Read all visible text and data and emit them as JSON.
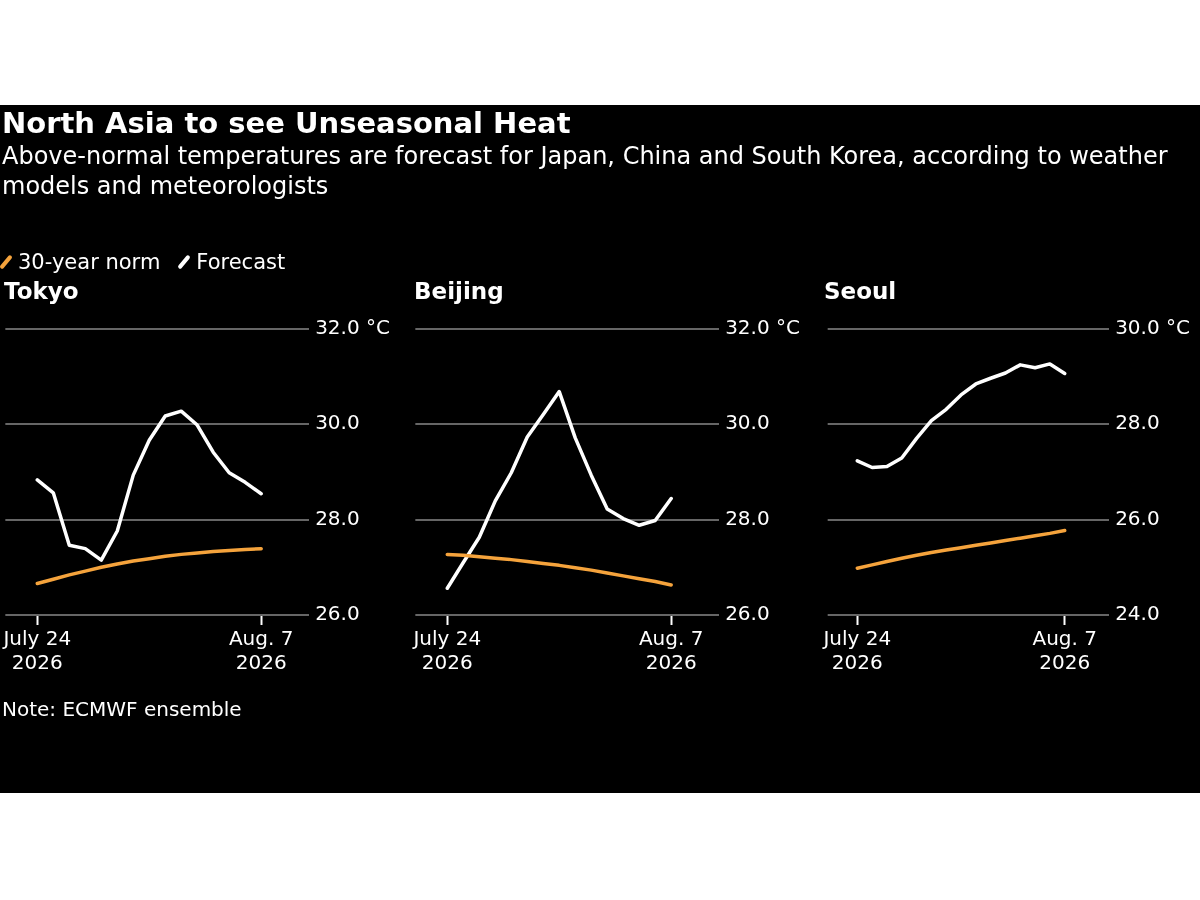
{
  "chart_data": [
    {
      "type": "other",
      "title": "North Asia to see Unseasonal Heat",
      "subtitle": "Above-normal temperatures are forecast for Japan, China and South Korea, according to weather models and meteorologists",
      "annotations": [
        "Note: ECMWF ensemble"
      ]
    },
    {
      "type": "line",
      "title": "Tokyo",
      "legend": "top left",
      "grid": "y",
      "x": [
        "2026-07-24",
        "2026-07-25",
        "2026-07-26",
        "2026-07-27",
        "2026-07-28",
        "2026-07-29",
        "2026-07-30",
        "2026-07-31",
        "2026-08-01",
        "2026-08-02",
        "2026-08-03",
        "2026-08-04",
        "2026-08-05",
        "2026-08-06",
        "2026-08-07"
      ],
      "xlim": [
        "2026-07-22",
        "2026-08-10"
      ],
      "xticks": [
        {
          "value": "2026-07-24",
          "label": "July 24\n2026"
        },
        {
          "value": "2026-08-07",
          "label": "Aug. 7\n2026"
        }
      ],
      "ylim": [
        26,
        32
      ],
      "yticks": [
        {
          "value": 26,
          "label": "26.0"
        },
        {
          "value": 28,
          "label": "28.0"
        },
        {
          "value": 30,
          "label": "30.0"
        },
        {
          "value": 32,
          "label": "32.0 °C"
        }
      ],
      "series": [
        {
          "name": "30-year norm",
          "color": "#f5a33c",
          "values": [
            26.66,
            26.75,
            26.84,
            26.92,
            27.0,
            27.07,
            27.13,
            27.18,
            27.23,
            27.27,
            27.3,
            27.33,
            27.35,
            27.37,
            27.39
          ]
        },
        {
          "name": "Forecast",
          "color": "#ffffff",
          "values": [
            28.83,
            28.56,
            27.46,
            27.39,
            27.15,
            27.76,
            28.93,
            29.66,
            30.17,
            30.27,
            29.98,
            29.41,
            28.98,
            28.78,
            28.54
          ]
        }
      ]
    },
    {
      "type": "line",
      "title": "Beijing",
      "grid": "y",
      "x": [
        "2026-07-24",
        "2026-07-25",
        "2026-07-26",
        "2026-07-27",
        "2026-07-28",
        "2026-07-29",
        "2026-07-30",
        "2026-07-31",
        "2026-08-01",
        "2026-08-02",
        "2026-08-03",
        "2026-08-04",
        "2026-08-05",
        "2026-08-06",
        "2026-08-07"
      ],
      "xlim": [
        "2026-07-22",
        "2026-08-10"
      ],
      "xticks": [
        {
          "value": "2026-07-24",
          "label": "July 24\n2026"
        },
        {
          "value": "2026-08-07",
          "label": "Aug. 7\n2026"
        }
      ],
      "ylim": [
        26,
        32
      ],
      "yticks": [
        {
          "value": 26,
          "label": "26.0"
        },
        {
          "value": 28,
          "label": "28.0"
        },
        {
          "value": 30,
          "label": "30.0"
        },
        {
          "value": 32,
          "label": "32.0 °C"
        }
      ],
      "series": [
        {
          "color": "#f5a33c",
          "values": [
            27.27,
            27.25,
            27.22,
            27.19,
            27.16,
            27.12,
            27.08,
            27.04,
            26.99,
            26.94,
            26.88,
            26.82,
            26.76,
            26.7,
            26.63
          ]
        },
        {
          "color": "#ffffff",
          "values": [
            26.56,
            27.1,
            27.63,
            28.39,
            28.98,
            29.73,
            30.2,
            30.68,
            29.71,
            28.93,
            28.22,
            28.02,
            27.88,
            27.98,
            28.44
          ]
        }
      ]
    },
    {
      "type": "line",
      "title": "Seoul",
      "grid": "y",
      "x": [
        "2026-07-24",
        "2026-07-25",
        "2026-07-26",
        "2026-07-27",
        "2026-07-28",
        "2026-07-29",
        "2026-07-30",
        "2026-07-31",
        "2026-08-01",
        "2026-08-02",
        "2026-08-03",
        "2026-08-04",
        "2026-08-05",
        "2026-08-06",
        "2026-08-07"
      ],
      "xlim": [
        "2026-07-22",
        "2026-08-10"
      ],
      "xticks": [
        {
          "value": "2026-07-24",
          "label": "July 24\n2026"
        },
        {
          "value": "2026-08-07",
          "label": "Aug. 7\n2026"
        }
      ],
      "ylim": [
        24,
        30
      ],
      "yticks": [
        {
          "value": 24,
          "label": "24.0"
        },
        {
          "value": 26,
          "label": "26.0"
        },
        {
          "value": 28,
          "label": "28.0"
        },
        {
          "value": 30,
          "label": "30.0 °C"
        }
      ],
      "series": [
        {
          "color": "#f5a33c",
          "values": [
            24.98,
            25.05,
            25.12,
            25.19,
            25.25,
            25.31,
            25.36,
            25.41,
            25.46,
            25.51,
            25.56,
            25.61,
            25.66,
            25.71,
            25.77
          ]
        },
        {
          "color": "#ffffff",
          "values": [
            27.23,
            27.09,
            27.11,
            27.29,
            27.7,
            28.07,
            28.31,
            28.61,
            28.84,
            28.96,
            29.07,
            29.24,
            29.18,
            29.26,
            29.06
          ]
        }
      ]
    }
  ]
}
